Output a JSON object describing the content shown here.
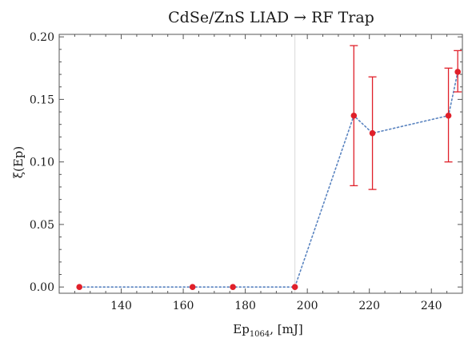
{
  "chart_data": {
    "type": "scatter",
    "title": "CdSe/ZnS LIAD → RF Trap",
    "xlabel": "Ep",
    "xlabel_subscript": "1064",
    "xlabel_suffix": ", [mJ]",
    "ylabel": "ξ(Ep)",
    "xlim": [
      120,
      250
    ],
    "ylim": [
      -0.005,
      0.202
    ],
    "xticks": [
      140,
      160,
      180,
      200,
      220,
      240
    ],
    "yticks": [
      0.0,
      0.05,
      0.1,
      0.15,
      0.2
    ],
    "ytick_labels": [
      "0.00",
      "0.05",
      "0.10",
      "0.15",
      "0.20"
    ],
    "grid": false,
    "reference_line_x": 196,
    "connecting_line": "dotted",
    "series": [
      {
        "x": [
          126.5,
          163,
          176,
          196,
          215,
          221,
          245.5,
          248.5
        ],
        "y": [
          0.0,
          0.0,
          0.0,
          0.0,
          0.137,
          0.123,
          0.137,
          0.172
        ],
        "err_low": [
          null,
          null,
          null,
          null,
          0.081,
          0.078,
          0.1,
          0.156
        ],
        "err_high": [
          null,
          null,
          null,
          null,
          0.193,
          0.168,
          0.175,
          0.189
        ]
      }
    ],
    "colors": {
      "points": "#e0202a",
      "errorbars": "#e0202a",
      "line": "#5a84c0",
      "frame": "#555555",
      "refline": "#d9d9d9"
    }
  }
}
